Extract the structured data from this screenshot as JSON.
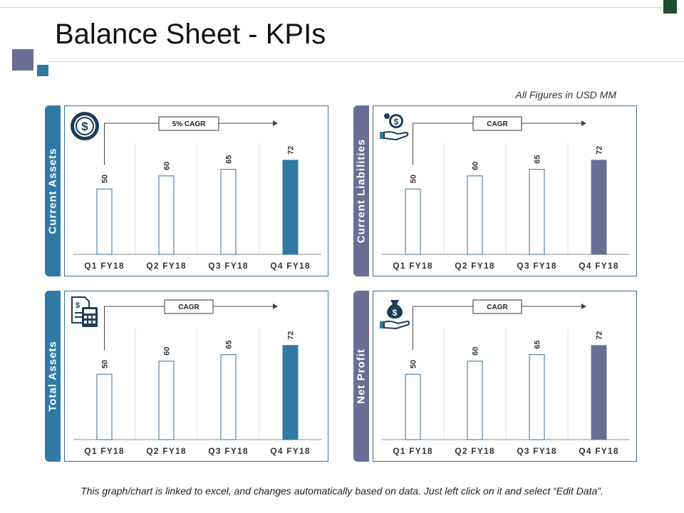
{
  "header": {
    "title": "Balance Sheet - KPIs",
    "units_note": "All Figures in USD MM"
  },
  "footer": {
    "note": "This graph/chart is linked to excel, and changes automatically based on data. Just left click on it and select “Edit Data”."
  },
  "colors": {
    "teal": "#2f7aa3",
    "purple": "#6c6d96",
    "box_border": "#3a6f8c",
    "bar_outline": "#2f6f94"
  },
  "panels": [
    {
      "label": "Current Assets",
      "icon": "dollar-coin-icon",
      "cagr_label": "5% CAGR",
      "accent": "#2f7aa3"
    },
    {
      "label": "Current Liabilities",
      "icon": "money-hand-icon",
      "cagr_label": "CAGR",
      "accent": "#6c6d96"
    },
    {
      "label": "Total Assets",
      "icon": "calculator-document-icon",
      "cagr_label": "CAGR",
      "accent": "#2f7aa3"
    },
    {
      "label": "Net Profit",
      "icon": "money-bag-hand-icon",
      "cagr_label": "CAGR",
      "accent": "#6c6d96"
    }
  ],
  "chart_data": [
    {
      "type": "bar",
      "title": "Current Assets",
      "categories": [
        "Q1 FY18",
        "Q2 FY18",
        "Q3 FY18",
        "Q4 FY18"
      ],
      "values": [
        50,
        60,
        65,
        72
      ],
      "ylim": [
        0,
        85
      ],
      "annotation": "5% CAGR"
    },
    {
      "type": "bar",
      "title": "Current Liabilities",
      "categories": [
        "Q1 FY18",
        "Q2 FY18",
        "Q3 FY18",
        "Q4 FY18"
      ],
      "values": [
        50,
        60,
        65,
        72
      ],
      "ylim": [
        0,
        85
      ],
      "annotation": "CAGR"
    },
    {
      "type": "bar",
      "title": "Total Assets",
      "categories": [
        "Q1 FY18",
        "Q2 FY18",
        "Q3 FY18",
        "Q4 FY18"
      ],
      "values": [
        50,
        60,
        65,
        72
      ],
      "ylim": [
        0,
        85
      ],
      "annotation": "CAGR"
    },
    {
      "type": "bar",
      "title": "Net Profit",
      "categories": [
        "Q1 FY18",
        "Q2 FY18",
        "Q3 FY18",
        "Q4 FY18"
      ],
      "values": [
        50,
        60,
        65,
        72
      ],
      "ylim": [
        0,
        85
      ],
      "annotation": "CAGR"
    }
  ]
}
